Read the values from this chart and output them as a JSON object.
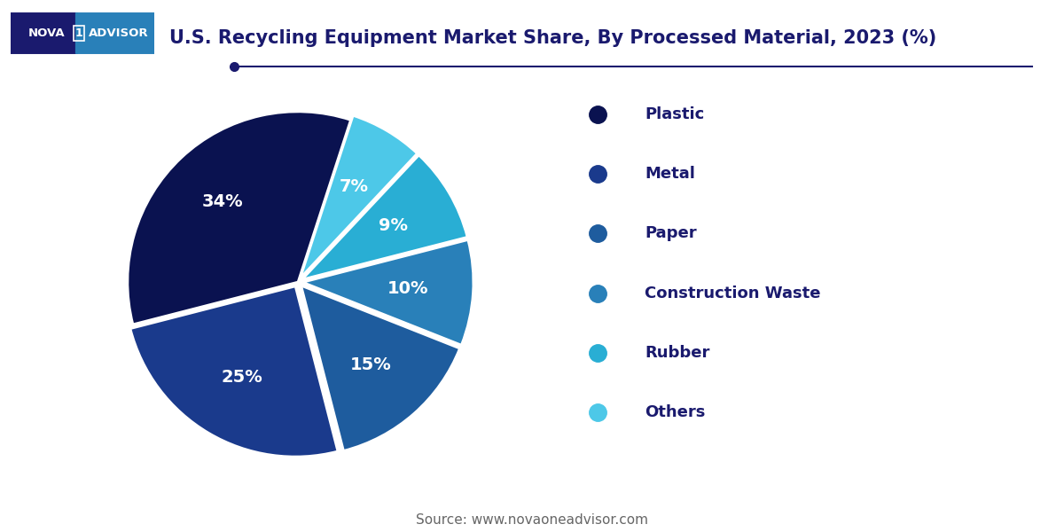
{
  "title": "U.S. Recycling Equipment Market Share, By Processed Material, 2023 (%)",
  "title_color": "#1a1a6e",
  "title_fontsize": 15,
  "labels": [
    "Plastic",
    "Metal",
    "Paper",
    "Construction Waste",
    "Rubber",
    "Others"
  ],
  "values": [
    34,
    25,
    15,
    10,
    9,
    7
  ],
  "colors": [
    "#0a1250",
    "#1a3a8c",
    "#1e5c9e",
    "#2980b9",
    "#29aed4",
    "#4dc8e8"
  ],
  "pct_labels": [
    "34%",
    "25%",
    "15%",
    "10%",
    "9%",
    "7%"
  ],
  "pct_color": "#ffffff",
  "pct_fontsize": 14,
  "legend_fontsize": 13,
  "legend_text_color": "#1a1a6e",
  "source_text": "Source: www.novaoneadvisor.com",
  "source_fontsize": 11,
  "source_color": "#666666",
  "bg_color": "#ffffff",
  "separator_color": "#1a1a6e",
  "explode": [
    0,
    0.03,
    0.03,
    0.03,
    0.03,
    0.03
  ],
  "startangle": 72
}
